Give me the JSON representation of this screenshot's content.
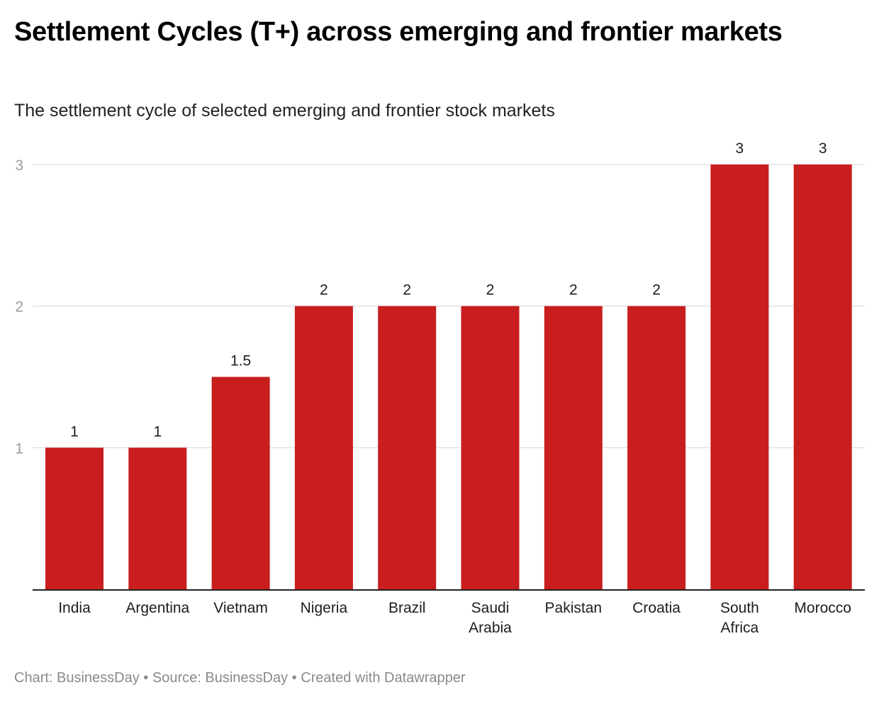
{
  "header": {
    "title": "Settlement Cycles (T+) across emerging and frontier markets",
    "subtitle": "The settlement cycle of selected emerging and frontier stock markets"
  },
  "footer": {
    "chart_credit": "Chart: BusinessDay",
    "separator": " • ",
    "source": "Source: BusinessDay",
    "tool": "Created with Datawrapper"
  },
  "colors": {
    "bar": "#c81e1e",
    "gridline": "#e2e2e2",
    "baseline": "#222222"
  },
  "chart_data": {
    "type": "bar",
    "title": "Settlement Cycles (T+) across emerging and frontier markets",
    "subtitle": "The settlement cycle of selected emerging and frontier stock markets",
    "xlabel": "",
    "ylabel": "",
    "categories": [
      [
        "India"
      ],
      [
        "Argentina"
      ],
      [
        "Vietnam"
      ],
      [
        "Nigeria"
      ],
      [
        "Brazil"
      ],
      [
        "Saudi",
        "Arabia"
      ],
      [
        "Pakistan"
      ],
      [
        "Croatia"
      ],
      [
        "South",
        "Africa"
      ],
      [
        "Morocco"
      ]
    ],
    "values": [
      1,
      1,
      1.5,
      2,
      2,
      2,
      2,
      2,
      3,
      3
    ],
    "value_labels": [
      "1",
      "1",
      "1.5",
      "2",
      "2",
      "2",
      "2",
      "2",
      "3",
      "3"
    ],
    "ylim": [
      0,
      3
    ],
    "yticks": [
      1,
      2,
      3
    ],
    "grid": true,
    "legend": "none"
  }
}
